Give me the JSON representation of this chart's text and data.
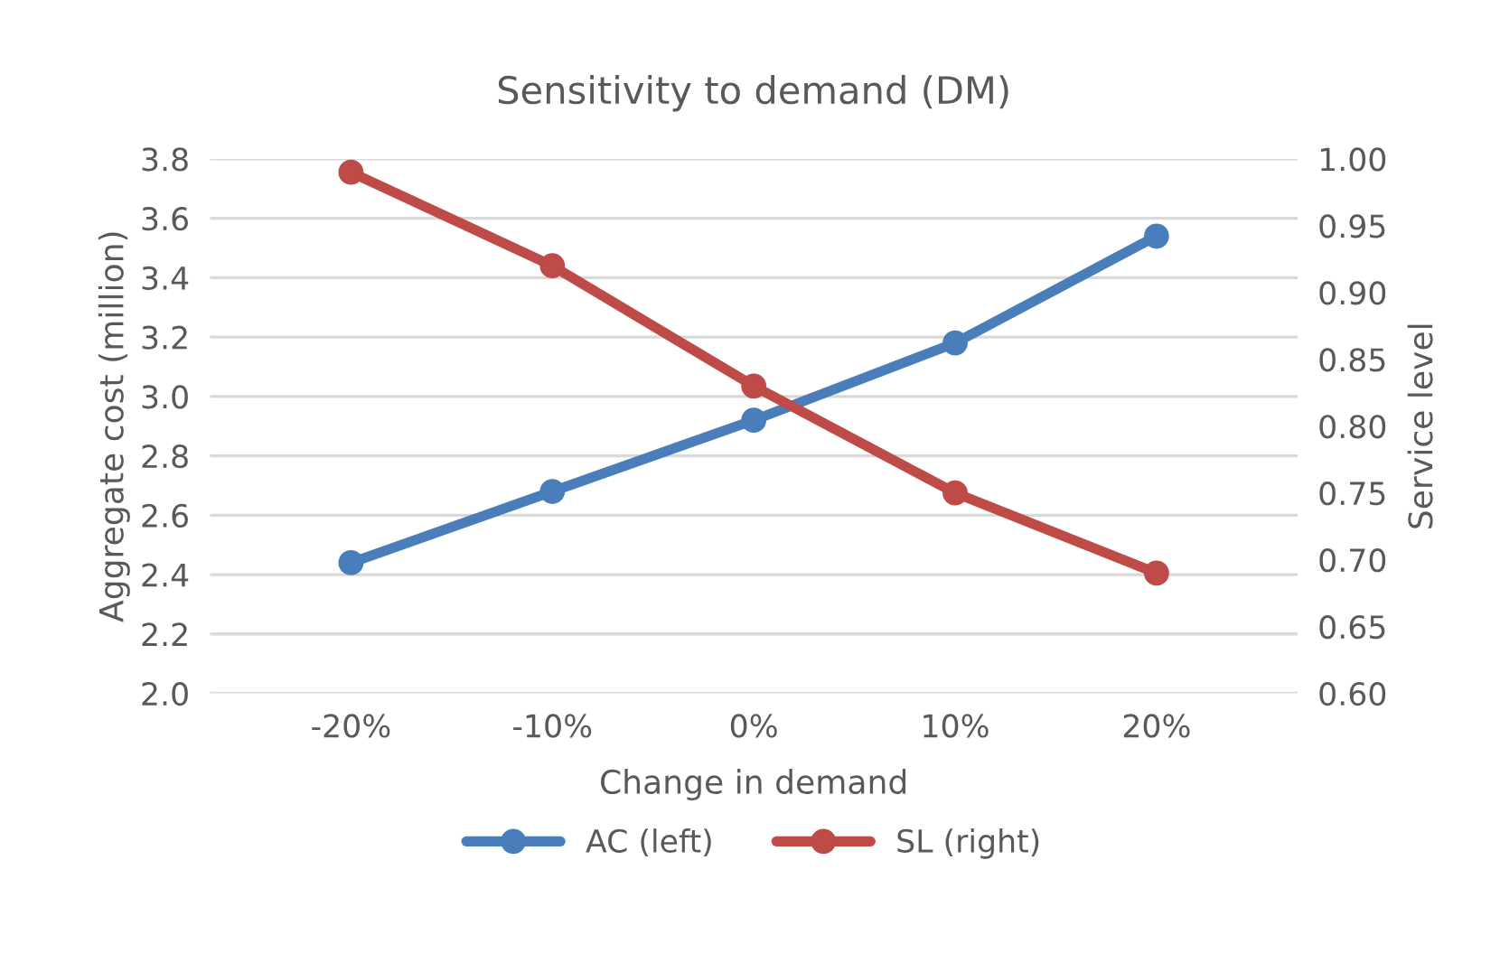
{
  "chart_data": {
    "type": "line",
    "title": "Sensitivity to demand (DM)",
    "xlabel": "Change in demand",
    "ylabel": "Aggregate cost (million)",
    "y2label": "Service level",
    "categories": [
      "-20%",
      "-10%",
      "0%",
      "10%",
      "20%"
    ],
    "series": [
      {
        "name": "AC (left)",
        "color": "#4a7ebb",
        "values": [
          2.44,
          2.68,
          2.92,
          3.18,
          3.54
        ]
      },
      {
        "name": "SL (right)",
        "color": "#be4b48",
        "values": [
          0.99,
          0.92,
          0.83,
          0.75,
          0.69
        ],
        "axis": "y2"
      }
    ],
    "ylim": [
      2.0,
      3.8
    ],
    "yticks": [
      {
        "value": 2.0,
        "label": "2.0"
      },
      {
        "value": 2.2,
        "label": "2.2"
      },
      {
        "value": 2.4,
        "label": "2.4"
      },
      {
        "value": 2.6,
        "label": "2.6"
      },
      {
        "value": 2.8,
        "label": "2.8"
      },
      {
        "value": 3.0,
        "label": "3.0"
      },
      {
        "value": 3.2,
        "label": "3.2"
      },
      {
        "value": 3.4,
        "label": "3.4"
      },
      {
        "value": 3.6,
        "label": "3.6"
      },
      {
        "value": 3.8,
        "label": "3.8"
      }
    ],
    "y2lim": [
      0.6,
      1.0
    ],
    "y2ticks": [
      {
        "value": 0.6,
        "label": "0.60"
      },
      {
        "value": 0.65,
        "label": "0.65"
      },
      {
        "value": 0.7,
        "label": "0.70"
      },
      {
        "value": 0.75,
        "label": "0.75"
      },
      {
        "value": 0.8,
        "label": "0.80"
      },
      {
        "value": 0.85,
        "label": "0.85"
      },
      {
        "value": 0.9,
        "label": "0.90"
      },
      {
        "value": 0.95,
        "label": "0.95"
      },
      {
        "value": 1.0,
        "label": "1.00"
      }
    ],
    "grid": "y",
    "legend": "bottom",
    "marker": "circle",
    "line_style": "solid"
  }
}
